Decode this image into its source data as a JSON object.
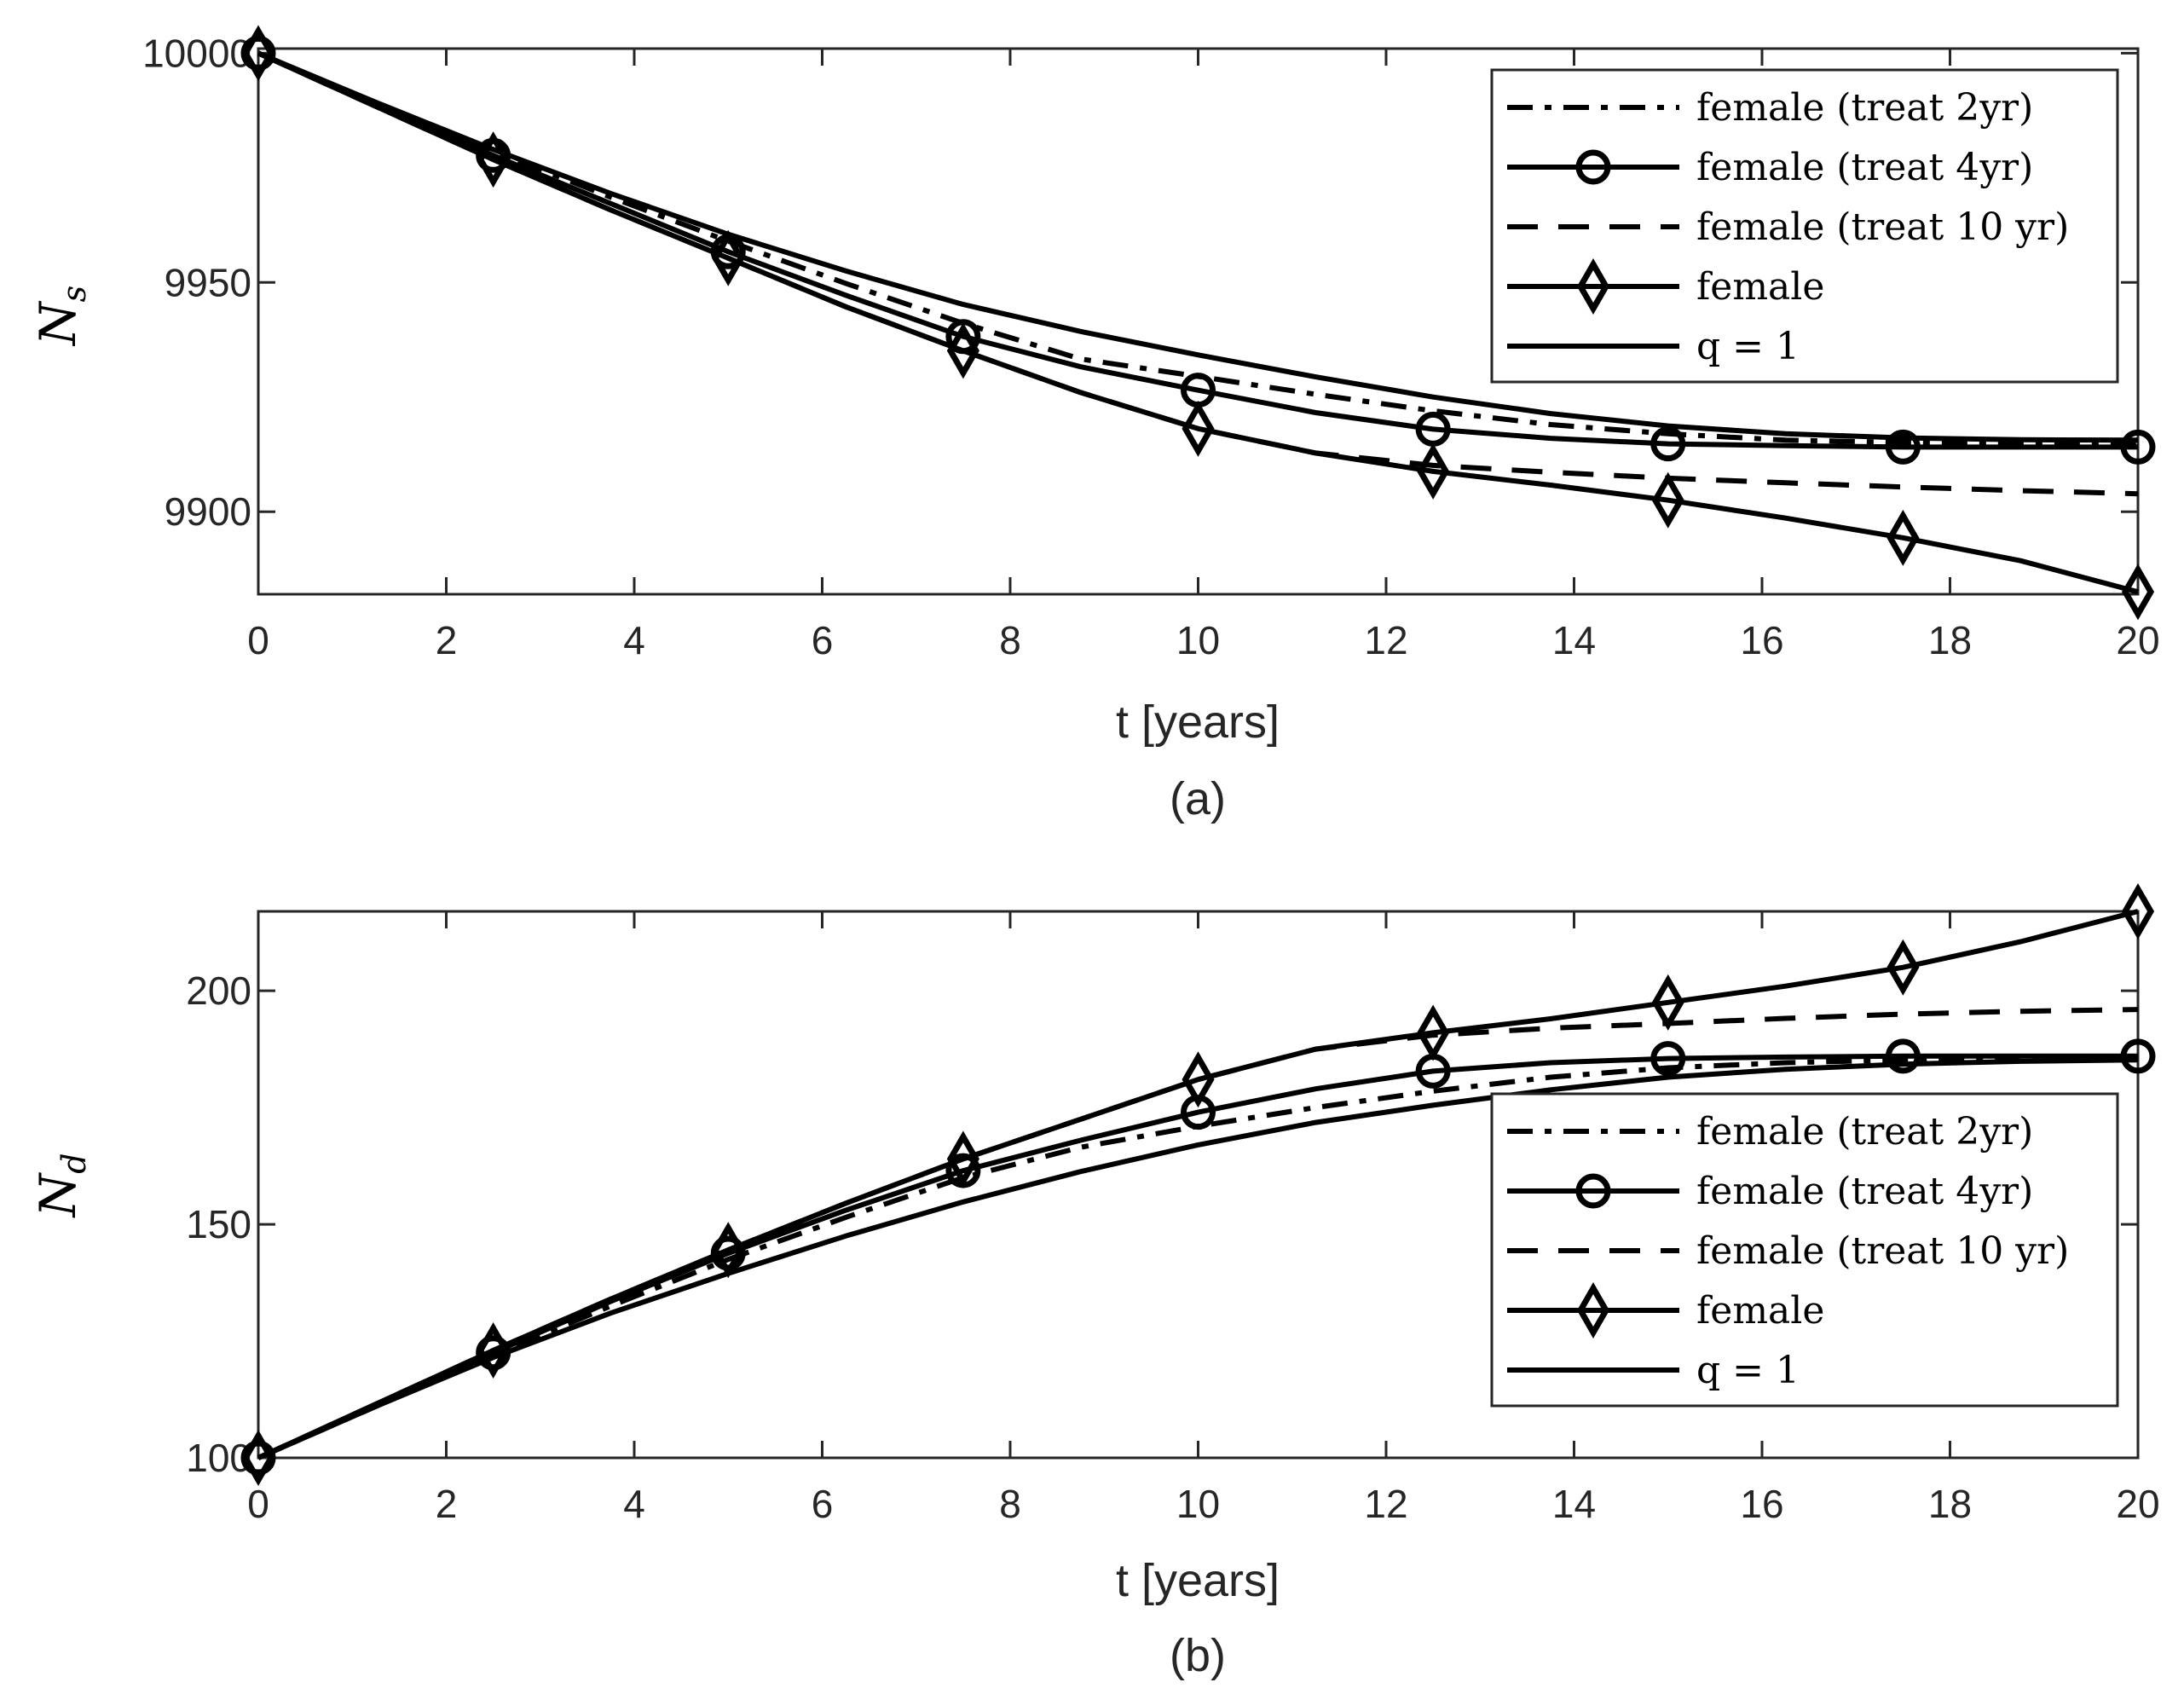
{
  "chart_data": [
    {
      "type": "line",
      "panel_label": "(a)",
      "xlabel": "t [years]",
      "ylabel": "N",
      "ylabel_sub": "s",
      "xlim": [
        0,
        20
      ],
      "ylim": [
        9882,
        10001
      ],
      "xticks": [
        0,
        2,
        4,
        6,
        8,
        10,
        12,
        14,
        16,
        18,
        20
      ],
      "yticks": [
        9900,
        9950,
        10000
      ],
      "grid": false,
      "legend_position": "top-right",
      "x": [
        0,
        1.25,
        2.5,
        3.75,
        5,
        6.25,
        7.5,
        8.75,
        10,
        11.25,
        12.5,
        13.75,
        15,
        16.25,
        17.5,
        18.75,
        20
      ],
      "marker_x": [
        0,
        2.5,
        5,
        7.5,
        10,
        12.5,
        15,
        17.5,
        20
      ],
      "series": [
        {
          "name": "female (treat 2yr)",
          "style": "dashdot",
          "marker": "none",
          "values": [
            10000,
            9989.2,
            9978.7,
            9968.6,
            9959,
            9949.8,
            9941.1,
            9933.3,
            9929.5,
            9925.6,
            9922,
            9919,
            9917,
            9915.6,
            9915.1,
            9914.9,
            9914.8
          ]
        },
        {
          "name": "female (treat 4yr)",
          "style": "solid",
          "marker": "circle",
          "values": [
            10000,
            9988.8,
            9977.7,
            9967.2,
            9956.7,
            9947.2,
            9938.2,
            9931.6,
            9926.5,
            9921.6,
            9918,
            9916,
            9914.8,
            9914.4,
            9914.1,
            9914.1,
            9914.1
          ]
        },
        {
          "name": "female (treat 10 yr)",
          "style": "dashed",
          "marker": "none",
          "values": [
            10000,
            9988.4,
            9976.8,
            9965.8,
            9955.3,
            9944.7,
            9935.1,
            9926,
            9918.1,
            9912.8,
            9910.1,
            9908.6,
            9907.3,
            9906.3,
            9905.4,
            9904.6,
            9903.9
          ]
        },
        {
          "name": "female",
          "style": "solid",
          "marker": "diamond",
          "values": [
            10000,
            9988.4,
            9976.8,
            9965.8,
            9955.3,
            9944.7,
            9935.1,
            9926,
            9918.1,
            9912.8,
            9908.8,
            9905.8,
            9902.5,
            9898.6,
            9894.3,
            9889.3,
            9882.5
          ]
        },
        {
          "name": "q = 1",
          "style": "solid",
          "marker": "none",
          "values": [
            10000,
            9989.3,
            9979,
            9969.4,
            9960.5,
            9952.5,
            9945.2,
            9939.3,
            9934.2,
            9929.4,
            9925,
            9921.4,
            9918.7,
            9917,
            9916.1,
            9915.7,
            9915.6
          ]
        }
      ]
    },
    {
      "type": "line",
      "panel_label": "(b)",
      "xlabel": "t [years]",
      "ylabel": "N",
      "ylabel_sub": "d",
      "xlim": [
        0,
        20
      ],
      "ylim": [
        100,
        217
      ],
      "xticks": [
        0,
        2,
        4,
        6,
        8,
        10,
        12,
        14,
        16,
        18,
        20
      ],
      "yticks": [
        100,
        150,
        200
      ],
      "grid": false,
      "legend_position": "bottom-right",
      "x": [
        0,
        1.25,
        2.5,
        3.75,
        5,
        6.25,
        7.5,
        8.75,
        10,
        11.25,
        12.5,
        13.75,
        15,
        16.25,
        17.5,
        18.75,
        20
      ],
      "marker_x": [
        0,
        2.5,
        5,
        7.5,
        10,
        12.5,
        15,
        17.5,
        20
      ],
      "series": [
        {
          "name": "female (treat 2yr)",
          "style": "dashdot",
          "marker": "none",
          "values": [
            100,
            111,
            122,
            132.5,
            142.5,
            151.5,
            160,
            166.5,
            171,
            175,
            178.5,
            181.5,
            183.5,
            184.6,
            185.2,
            185.5,
            185.6
          ]
        },
        {
          "name": "female (treat 4yr)",
          "style": "solid",
          "marker": "circle",
          "values": [
            100,
            111.3,
            122.5,
            133.5,
            143.8,
            153,
            161.5,
            168,
            174,
            179,
            182.8,
            184.6,
            185.5,
            185.8,
            186,
            186,
            186
          ]
        },
        {
          "name": "female (treat 10 yr)",
          "style": "dashed",
          "marker": "none",
          "values": [
            100,
            111.5,
            123,
            134,
            144.5,
            154.5,
            164,
            172.5,
            181,
            187.5,
            190.5,
            192,
            193,
            194.1,
            195,
            195.6,
            196
          ]
        },
        {
          "name": "female",
          "style": "solid",
          "marker": "diamond",
          "values": [
            100,
            111.5,
            123,
            134,
            144.5,
            154.5,
            164,
            172.5,
            181,
            187.5,
            191,
            194,
            197.5,
            201,
            205,
            210.5,
            217
          ]
        },
        {
          "name": "q = 1",
          "style": "solid",
          "marker": "none",
          "values": [
            100,
            111,
            121.5,
            131,
            139.5,
            147.5,
            154.8,
            161.3,
            167,
            171.8,
            175.5,
            178.8,
            181.5,
            183.2,
            184.3,
            184.9,
            185.2
          ]
        }
      ]
    }
  ]
}
